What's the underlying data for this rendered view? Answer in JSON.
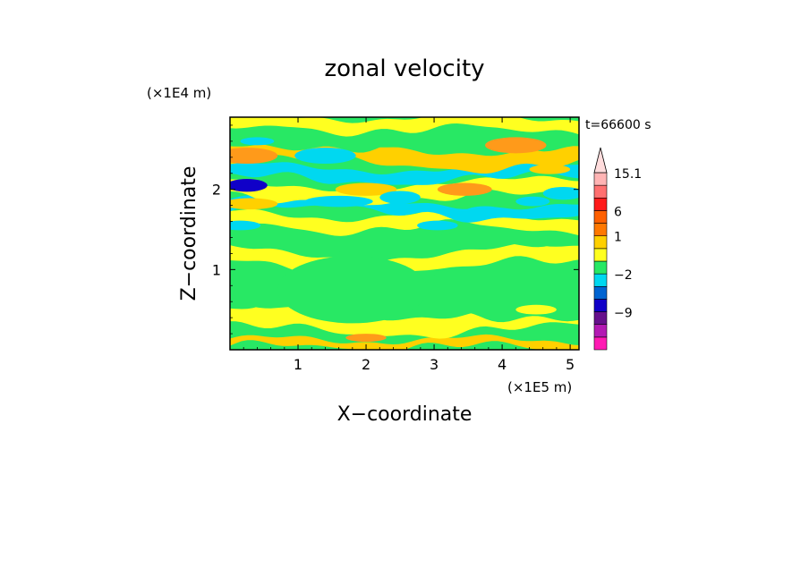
{
  "chart_data": {
    "type": "heatmap",
    "title": "zonal velocity",
    "xlabel": "X−coordinate",
    "ylabel": "Z−coordinate",
    "x_scale_label": "(×1E5 m)",
    "y_scale_label": "(×1E4 m)",
    "time_label": "t=66600 s",
    "xlim": [
      0,
      5.13
    ],
    "ylim": [
      0,
      2.9
    ],
    "x_ticks": [
      {
        "value": 1,
        "label": "1"
      },
      {
        "value": 2,
        "label": "2"
      },
      {
        "value": 3,
        "label": "3"
      },
      {
        "value": 4,
        "label": "4"
      },
      {
        "value": 5,
        "label": "5"
      }
    ],
    "y_ticks": [
      {
        "value": 1,
        "label": "1"
      },
      {
        "value": 2,
        "label": "2"
      }
    ],
    "colorbar": {
      "levels": [
        {
          "color": "#ff1ab3",
          "label": ""
        },
        {
          "color": "#b31ab3",
          "label": ""
        },
        {
          "color": "#66108c",
          "label": "−9"
        },
        {
          "color": "#1000c8",
          "label": ""
        },
        {
          "color": "#0064d2",
          "label": ""
        },
        {
          "color": "#00d8f0",
          "label": "−2"
        },
        {
          "color": "#28e864",
          "label": ""
        },
        {
          "color": "#ffff20",
          "label": ""
        },
        {
          "color": "#ffd000",
          "label": "1"
        },
        {
          "color": "#ff7800",
          "label": ""
        },
        {
          "color": "#ff6000",
          "label": "6"
        },
        {
          "color": "#ff1a1a",
          "label": ""
        },
        {
          "color": "#ff7070",
          "label": ""
        },
        {
          "color": "#ffb4b4",
          "label": "15.1"
        }
      ],
      "extend_top": true
    },
    "bands": [
      {
        "y": 0.08,
        "amp": 0.05,
        "freq": 2.1,
        "phase": 0.3,
        "value": 1,
        "thickness": 0.09
      },
      {
        "y": 0.35,
        "amp": 0.08,
        "freq": 1.4,
        "phase": 1.1,
        "value": 0.5,
        "thickness": 0.22
      },
      {
        "y": 0.72,
        "amp": 0.12,
        "freq": 1.0,
        "phase": 0.2,
        "value": -1,
        "thickness": 0.45
      },
      {
        "y": 1.12,
        "amp": 0.1,
        "freq": 1.3,
        "phase": 2.0,
        "value": 0.5,
        "thickness": 0.18
      },
      {
        "y": 1.35,
        "amp": 0.08,
        "freq": 1.6,
        "phase": 0.8,
        "value": -1,
        "thickness": 0.22
      },
      {
        "y": 1.6,
        "amp": 0.07,
        "freq": 1.9,
        "phase": 1.6,
        "value": 0.5,
        "thickness": 0.16
      },
      {
        "y": 1.78,
        "amp": 0.09,
        "freq": 1.1,
        "phase": 0.4,
        "value": -2,
        "thickness": 0.14
      },
      {
        "y": 1.98,
        "amp": 0.08,
        "freq": 1.2,
        "phase": 2.6,
        "value": 0.6,
        "thickness": 0.18
      },
      {
        "y": 2.2,
        "amp": 0.07,
        "freq": 1.5,
        "phase": 1.2,
        "value": -2,
        "thickness": 0.15
      },
      {
        "y": 2.42,
        "amp": 0.09,
        "freq": 1.3,
        "phase": 0.1,
        "value": 1.5,
        "thickness": 0.2
      },
      {
        "y": 2.62,
        "amp": 0.06,
        "freq": 1.7,
        "phase": 2.2,
        "value": -0.8,
        "thickness": 0.14
      },
      {
        "y": 2.82,
        "amp": 0.05,
        "freq": 2.0,
        "phase": 0.9,
        "value": 0.5,
        "thickness": 0.15
      }
    ],
    "blobs": [
      {
        "x": 0.25,
        "y": 2.05,
        "rx": 0.3,
        "ry": 0.08,
        "value": -5
      },
      {
        "x": 0.25,
        "y": 2.42,
        "rx": 0.45,
        "ry": 0.1,
        "value": 2
      },
      {
        "x": 0.3,
        "y": 1.82,
        "rx": 0.4,
        "ry": 0.07,
        "value": 1.5
      },
      {
        "x": 0.4,
        "y": 2.6,
        "rx": 0.25,
        "ry": 0.05,
        "value": -2
      },
      {
        "x": 1.4,
        "y": 2.42,
        "rx": 0.45,
        "ry": 0.1,
        "value": -2
      },
      {
        "x": 1.6,
        "y": 1.85,
        "rx": 0.5,
        "ry": 0.07,
        "value": -2
      },
      {
        "x": 2.0,
        "y": 2.0,
        "rx": 0.45,
        "ry": 0.08,
        "value": 1.5
      },
      {
        "x": 2.5,
        "y": 1.9,
        "rx": 0.3,
        "ry": 0.08,
        "value": -2
      },
      {
        "x": 3.05,
        "y": 1.55,
        "rx": 0.3,
        "ry": 0.06,
        "value": -2
      },
      {
        "x": 3.45,
        "y": 2.0,
        "rx": 0.4,
        "ry": 0.08,
        "value": 2
      },
      {
        "x": 3.75,
        "y": 1.72,
        "rx": 0.3,
        "ry": 0.07,
        "value": -2
      },
      {
        "x": 4.2,
        "y": 2.55,
        "rx": 0.45,
        "ry": 0.1,
        "value": 2
      },
      {
        "x": 4.45,
        "y": 1.85,
        "rx": 0.25,
        "ry": 0.06,
        "value": -2
      },
      {
        "x": 4.9,
        "y": 1.95,
        "rx": 0.3,
        "ry": 0.08,
        "value": -2
      },
      {
        "x": 4.7,
        "y": 2.25,
        "rx": 0.3,
        "ry": 0.06,
        "value": 1.5
      },
      {
        "x": 0.15,
        "y": 1.55,
        "rx": 0.3,
        "ry": 0.06,
        "value": -2
      },
      {
        "x": 2.0,
        "y": 0.15,
        "rx": 0.3,
        "ry": 0.05,
        "value": 2
      },
      {
        "x": 4.5,
        "y": 0.5,
        "rx": 0.3,
        "ry": 0.06,
        "value": 0.5
      },
      {
        "x": 1.8,
        "y": 0.75,
        "rx": 1.1,
        "ry": 0.42,
        "value": -1
      }
    ]
  }
}
